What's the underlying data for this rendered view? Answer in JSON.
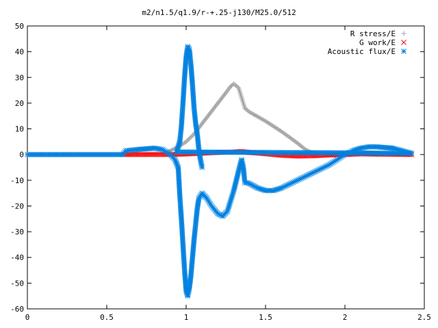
{
  "chart_data": {
    "type": "scatter",
    "title": "m2/n1.5/q1.9/r-+.25-j130/M25.0/512",
    "xlabel": "",
    "ylabel": "",
    "xlim": [
      0,
      2.5
    ],
    "ylim": [
      -60,
      50
    ],
    "xticks": [
      "0",
      "0.5",
      "1",
      "1.5",
      "2",
      "2.5"
    ],
    "yticks": [
      "50",
      "40",
      "30",
      "20",
      "10",
      "0",
      "-10",
      "-20",
      "-30",
      "-40",
      "-50",
      "-60"
    ],
    "grid": false,
    "legend_position": "top-right",
    "series": [
      {
        "name": "R stress/E",
        "marker": "plus",
        "color": "#a0a0a0",
        "points": [
          [
            0.0,
            0.0
          ],
          [
            0.6,
            0.0
          ],
          [
            0.85,
            0.5
          ],
          [
            0.9,
            1.5
          ],
          [
            0.95,
            3
          ],
          [
            1.0,
            5
          ],
          [
            1.05,
            8
          ],
          [
            1.1,
            12
          ],
          [
            1.15,
            16
          ],
          [
            1.2,
            20
          ],
          [
            1.25,
            24
          ],
          [
            1.28,
            26.5
          ],
          [
            1.3,
            27.5
          ],
          [
            1.33,
            26
          ],
          [
            1.35,
            22
          ],
          [
            1.37,
            18
          ],
          [
            1.4,
            16.5
          ],
          [
            1.5,
            13
          ],
          [
            1.6,
            9
          ],
          [
            1.7,
            4.5
          ],
          [
            1.75,
            2
          ],
          [
            1.8,
            0.5
          ],
          [
            1.9,
            0
          ],
          [
            2.0,
            0
          ],
          [
            2.42,
            0
          ]
        ]
      },
      {
        "name": "G work/E",
        "marker": "cross",
        "color": "#ff0000",
        "points": [
          [
            0.6,
            0.0
          ],
          [
            0.9,
            0.0
          ],
          [
            1.0,
            0.2
          ],
          [
            1.1,
            0.5
          ],
          [
            1.2,
            0.8
          ],
          [
            1.3,
            1.0
          ],
          [
            1.35,
            1.2
          ],
          [
            1.4,
            0.8
          ],
          [
            1.5,
            0.3
          ],
          [
            1.6,
            -0.3
          ],
          [
            1.7,
            -0.6
          ],
          [
            1.8,
            -0.5
          ],
          [
            1.9,
            -0.2
          ],
          [
            2.0,
            0.0
          ],
          [
            2.1,
            0.3
          ],
          [
            2.2,
            0.2
          ],
          [
            2.3,
            0.1
          ],
          [
            2.42,
            0.0
          ]
        ]
      },
      {
        "name": "Acoustic flux/E",
        "marker": "asterisk",
        "color": "#0080e0",
        "points": [
          [
            0.0,
            0.0
          ],
          [
            0.6,
            0.0
          ],
          [
            0.62,
            1.5
          ],
          [
            0.7,
            2
          ],
          [
            0.8,
            2.5
          ],
          [
            0.85,
            2.0
          ],
          [
            0.9,
            0
          ],
          [
            0.93,
            -2
          ],
          [
            0.95,
            -5
          ],
          [
            0.96,
            -16
          ],
          [
            0.97,
            -25
          ],
          [
            0.98,
            -35
          ],
          [
            0.99,
            -45
          ],
          [
            1.0,
            -53
          ],
          [
            1.01,
            -55
          ],
          [
            1.02,
            -52
          ],
          [
            1.03,
            -47
          ],
          [
            1.04,
            -40
          ],
          [
            1.05,
            -33
          ],
          [
            1.06,
            -27
          ],
          [
            1.07,
            -21
          ],
          [
            1.08,
            -17
          ],
          [
            1.1,
            -15
          ],
          [
            1.13,
            -17
          ],
          [
            1.16,
            -20
          ],
          [
            1.2,
            -23
          ],
          [
            1.23,
            -24
          ],
          [
            1.26,
            -22
          ],
          [
            1.28,
            -18
          ],
          [
            1.3,
            -14
          ],
          [
            1.32,
            -9
          ],
          [
            1.34,
            -4
          ],
          [
            1.35,
            -2
          ],
          [
            1.36,
            -5
          ],
          [
            1.37,
            -11
          ],
          [
            1.39,
            -11
          ],
          [
            1.42,
            -12
          ],
          [
            1.45,
            -13
          ],
          [
            1.5,
            -14
          ],
          [
            1.55,
            -14
          ],
          [
            1.6,
            -13
          ],
          [
            1.7,
            -10
          ],
          [
            1.8,
            -7
          ],
          [
            1.9,
            -4
          ],
          [
            1.95,
            -2
          ],
          [
            2.0,
            0
          ],
          [
            2.05,
            1.5
          ],
          [
            2.1,
            2.5
          ],
          [
            2.15,
            3
          ],
          [
            2.2,
            3
          ],
          [
            2.3,
            2.5
          ],
          [
            2.42,
            0.5
          ],
          [
            0.94,
            1
          ],
          [
            0.95,
            3
          ],
          [
            0.96,
            5
          ],
          [
            0.97,
            11
          ],
          [
            0.98,
            20
          ],
          [
            0.99,
            30
          ],
          [
            1.0,
            38
          ],
          [
            1.01,
            42
          ],
          [
            1.02,
            41
          ],
          [
            1.03,
            35
          ],
          [
            1.04,
            27
          ],
          [
            1.05,
            18
          ],
          [
            1.06,
            12
          ],
          [
            1.07,
            8
          ],
          [
            1.08,
            2
          ],
          [
            1.09,
            -2
          ],
          [
            1.1,
            -5
          ]
        ]
      }
    ]
  }
}
